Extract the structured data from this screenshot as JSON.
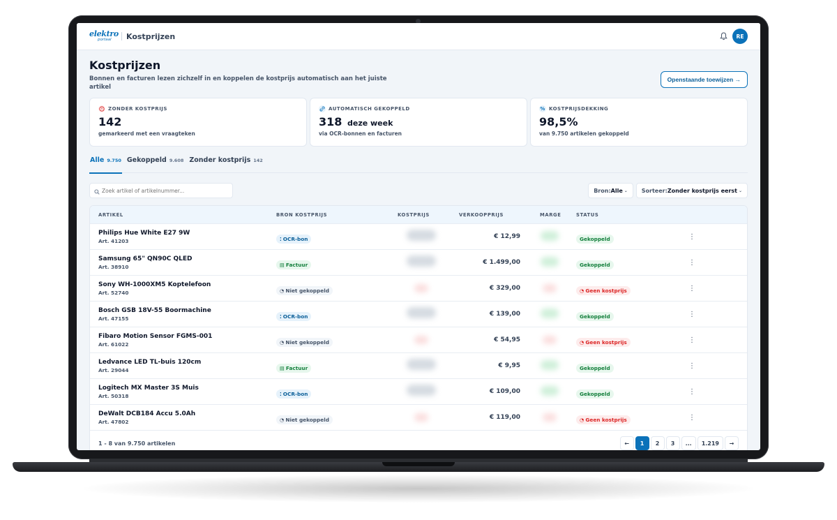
{
  "topbar": {
    "logo_main": "elektro",
    "logo_sub": "portaal",
    "crumb": "Kostprijzen",
    "avatar_initials": "RE"
  },
  "header": {
    "title": "Kostprijzen",
    "subtitle": "Bonnen en facturen lezen zichzelf in en koppelen de kostprijs automatisch aan het juiste artikel",
    "cta_label": "Openstaande toewijzen →"
  },
  "stats": [
    {
      "label": "ZONDER KOSTPRIJS",
      "value": "142",
      "suffix": "",
      "note": "gemarkeerd met een vraagteken",
      "icon": "alert-icon",
      "color": "#dc2626"
    },
    {
      "label": "AUTOMATISCH GEKOPPELD",
      "value": "318",
      "suffix": "deze week",
      "note": "via OCR-bonnen en facturen",
      "icon": "link-icon",
      "color": "#0b72b9"
    },
    {
      "label": "KOSTPRIJSDEKKING",
      "value": "98,5%",
      "suffix": "",
      "note": "van 9.750 artikelen gekoppeld",
      "icon": "percent-icon",
      "color": "#0b72b9"
    }
  ],
  "tabs": [
    {
      "label": "Alle",
      "count": "9.750",
      "active": true
    },
    {
      "label": "Gekoppeld",
      "count": "9.608",
      "active": false
    },
    {
      "label": "Zonder kostprijs",
      "count": "142",
      "active": false
    }
  ],
  "toolbar": {
    "search_placeholder": "Zoek artikel of artikelnummer...",
    "bron_label": "Bron:",
    "bron_value": "Alle",
    "sort_label": "Sorteer:",
    "sort_value": "Zonder kostprijs eerst"
  },
  "table": {
    "columns": [
      "ARTIKEL",
      "BRON KOSTPRIJS",
      "KOSTPRIJS",
      "VERKOOPPRIJS",
      "MARGE",
      "STATUS"
    ],
    "rows": [
      {
        "name": "Philips Hue White E27 9W",
        "art": "Art. 41203",
        "source": "OCR-bon",
        "source_type": "ocr",
        "price": "€ 12,99",
        "status": "Gekoppeld",
        "status_type": "ok"
      },
      {
        "name": "Samsung 65\" QN90C QLED",
        "art": "Art. 38910",
        "source": "Factuur",
        "source_type": "fac",
        "price": "€ 1.499,00",
        "status": "Gekoppeld",
        "status_type": "ok"
      },
      {
        "name": "Sony WH-1000XM5 Koptelefoon",
        "art": "Art. 52740",
        "source": "Niet gekoppeld",
        "source_type": "none",
        "price": "€ 329,00",
        "status": "Geen kostprijs",
        "status_type": "bad"
      },
      {
        "name": "Bosch GSB 18V-55 Boormachine",
        "art": "Art. 47155",
        "source": "OCR-bon",
        "source_type": "ocr",
        "price": "€ 139,00",
        "status": "Gekoppeld",
        "status_type": "ok"
      },
      {
        "name": "Fibaro Motion Sensor FGMS-001",
        "art": "Art. 61022",
        "source": "Niet gekoppeld",
        "source_type": "none",
        "price": "€ 54,95",
        "status": "Geen kostprijs",
        "status_type": "bad"
      },
      {
        "name": "Ledvance LED TL-buis 120cm",
        "art": "Art. 29044",
        "source": "Factuur",
        "source_type": "fac",
        "price": "€ 9,95",
        "status": "Gekoppeld",
        "status_type": "ok"
      },
      {
        "name": "Logitech MX Master 3S Muis",
        "art": "Art. 50318",
        "source": "OCR-bon",
        "source_type": "ocr",
        "price": "€ 109,00",
        "status": "Gekoppeld",
        "status_type": "ok"
      },
      {
        "name": "DeWalt DCB184 Accu 5.0Ah",
        "art": "Art. 47802",
        "source": "Niet gekoppeld",
        "source_type": "none",
        "price": "€ 119,00",
        "status": "Geen kostprijs",
        "status_type": "bad"
      }
    ],
    "footer_text": "1 - 8 van 9.750 artikelen",
    "pages": [
      "←",
      "1",
      "2",
      "3",
      "...",
      "1.219",
      "→"
    ],
    "active_page": "1"
  }
}
